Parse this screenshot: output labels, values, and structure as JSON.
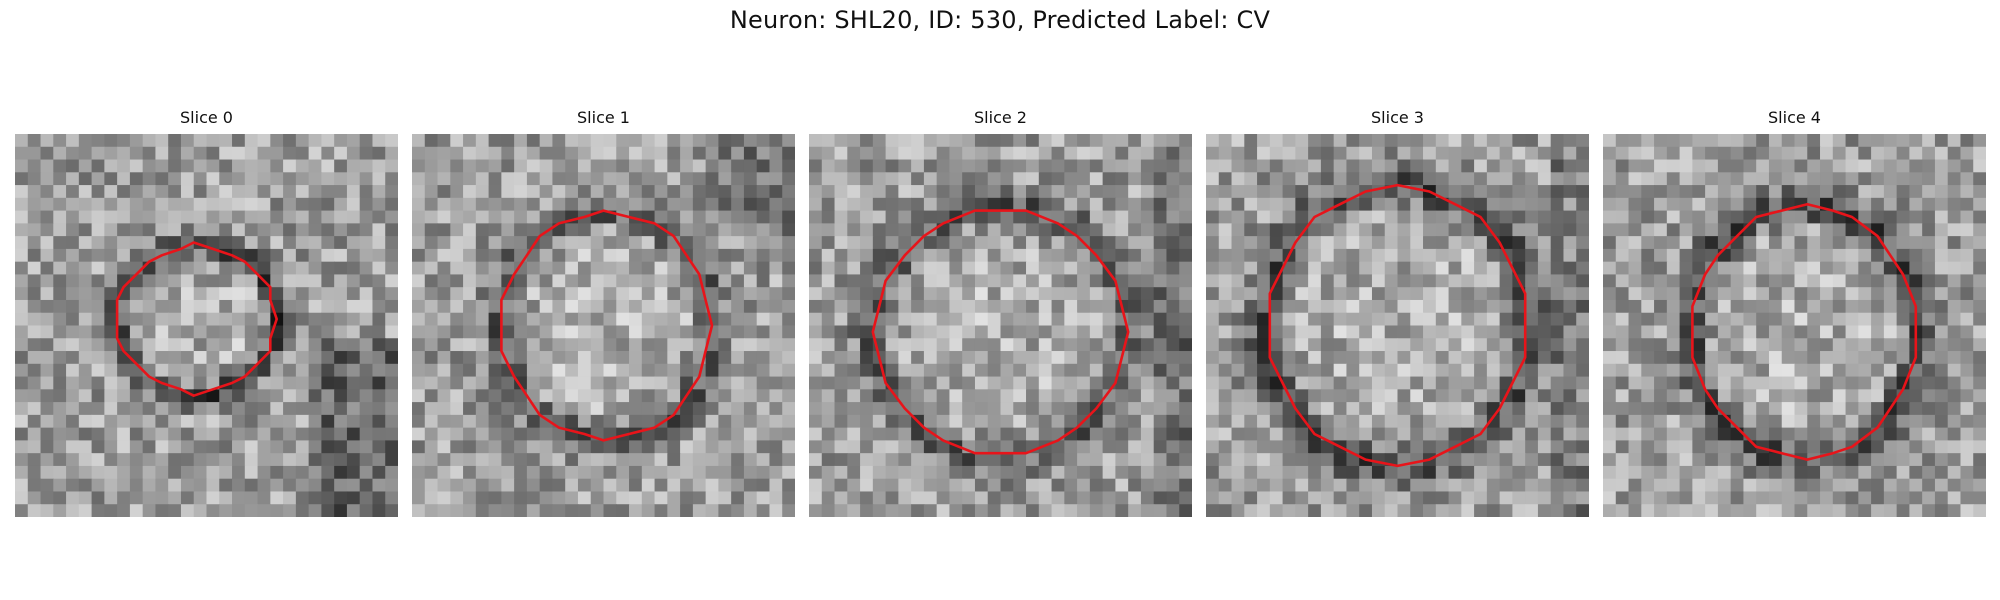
{
  "figure": {
    "title": "Neuron: SHL20, ID: 530, Predicted Label: CV"
  },
  "slices": [
    {
      "title": "Slice 0"
    },
    {
      "title": "Slice 1"
    },
    {
      "title": "Slice 2"
    },
    {
      "title": "Slice 3"
    },
    {
      "title": "Slice 4"
    }
  ],
  "colors": {
    "contour": "#e8141a",
    "background": "#ffffff"
  }
}
